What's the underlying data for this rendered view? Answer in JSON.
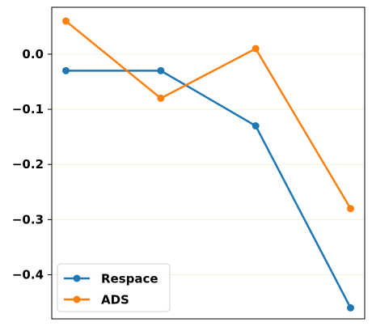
{
  "chart_data": {
    "type": "line",
    "x": [
      1,
      2,
      3,
      4
    ],
    "series": [
      {
        "name": "Respace",
        "color": "#1f77b4",
        "values": [
          -0.03,
          -0.03,
          -0.13,
          -0.46
        ]
      },
      {
        "name": "ADS",
        "color": "#ff7f0e",
        "values": [
          0.06,
          -0.08,
          0.01,
          -0.28
        ]
      }
    ],
    "ylim": [
      -0.48,
      0.085
    ],
    "yticks": [
      0.0,
      -0.1,
      -0.2,
      -0.3,
      -0.4
    ],
    "ytick_labels": [
      "0.0",
      "−0.1",
      "−0.2",
      "−0.3",
      "−0.4"
    ],
    "xticks_visible": false,
    "grid": "horizontal",
    "grid_color": "#f5f0dc",
    "legend_position": "lower-left",
    "title": "",
    "xlabel": "",
    "ylabel": ""
  }
}
